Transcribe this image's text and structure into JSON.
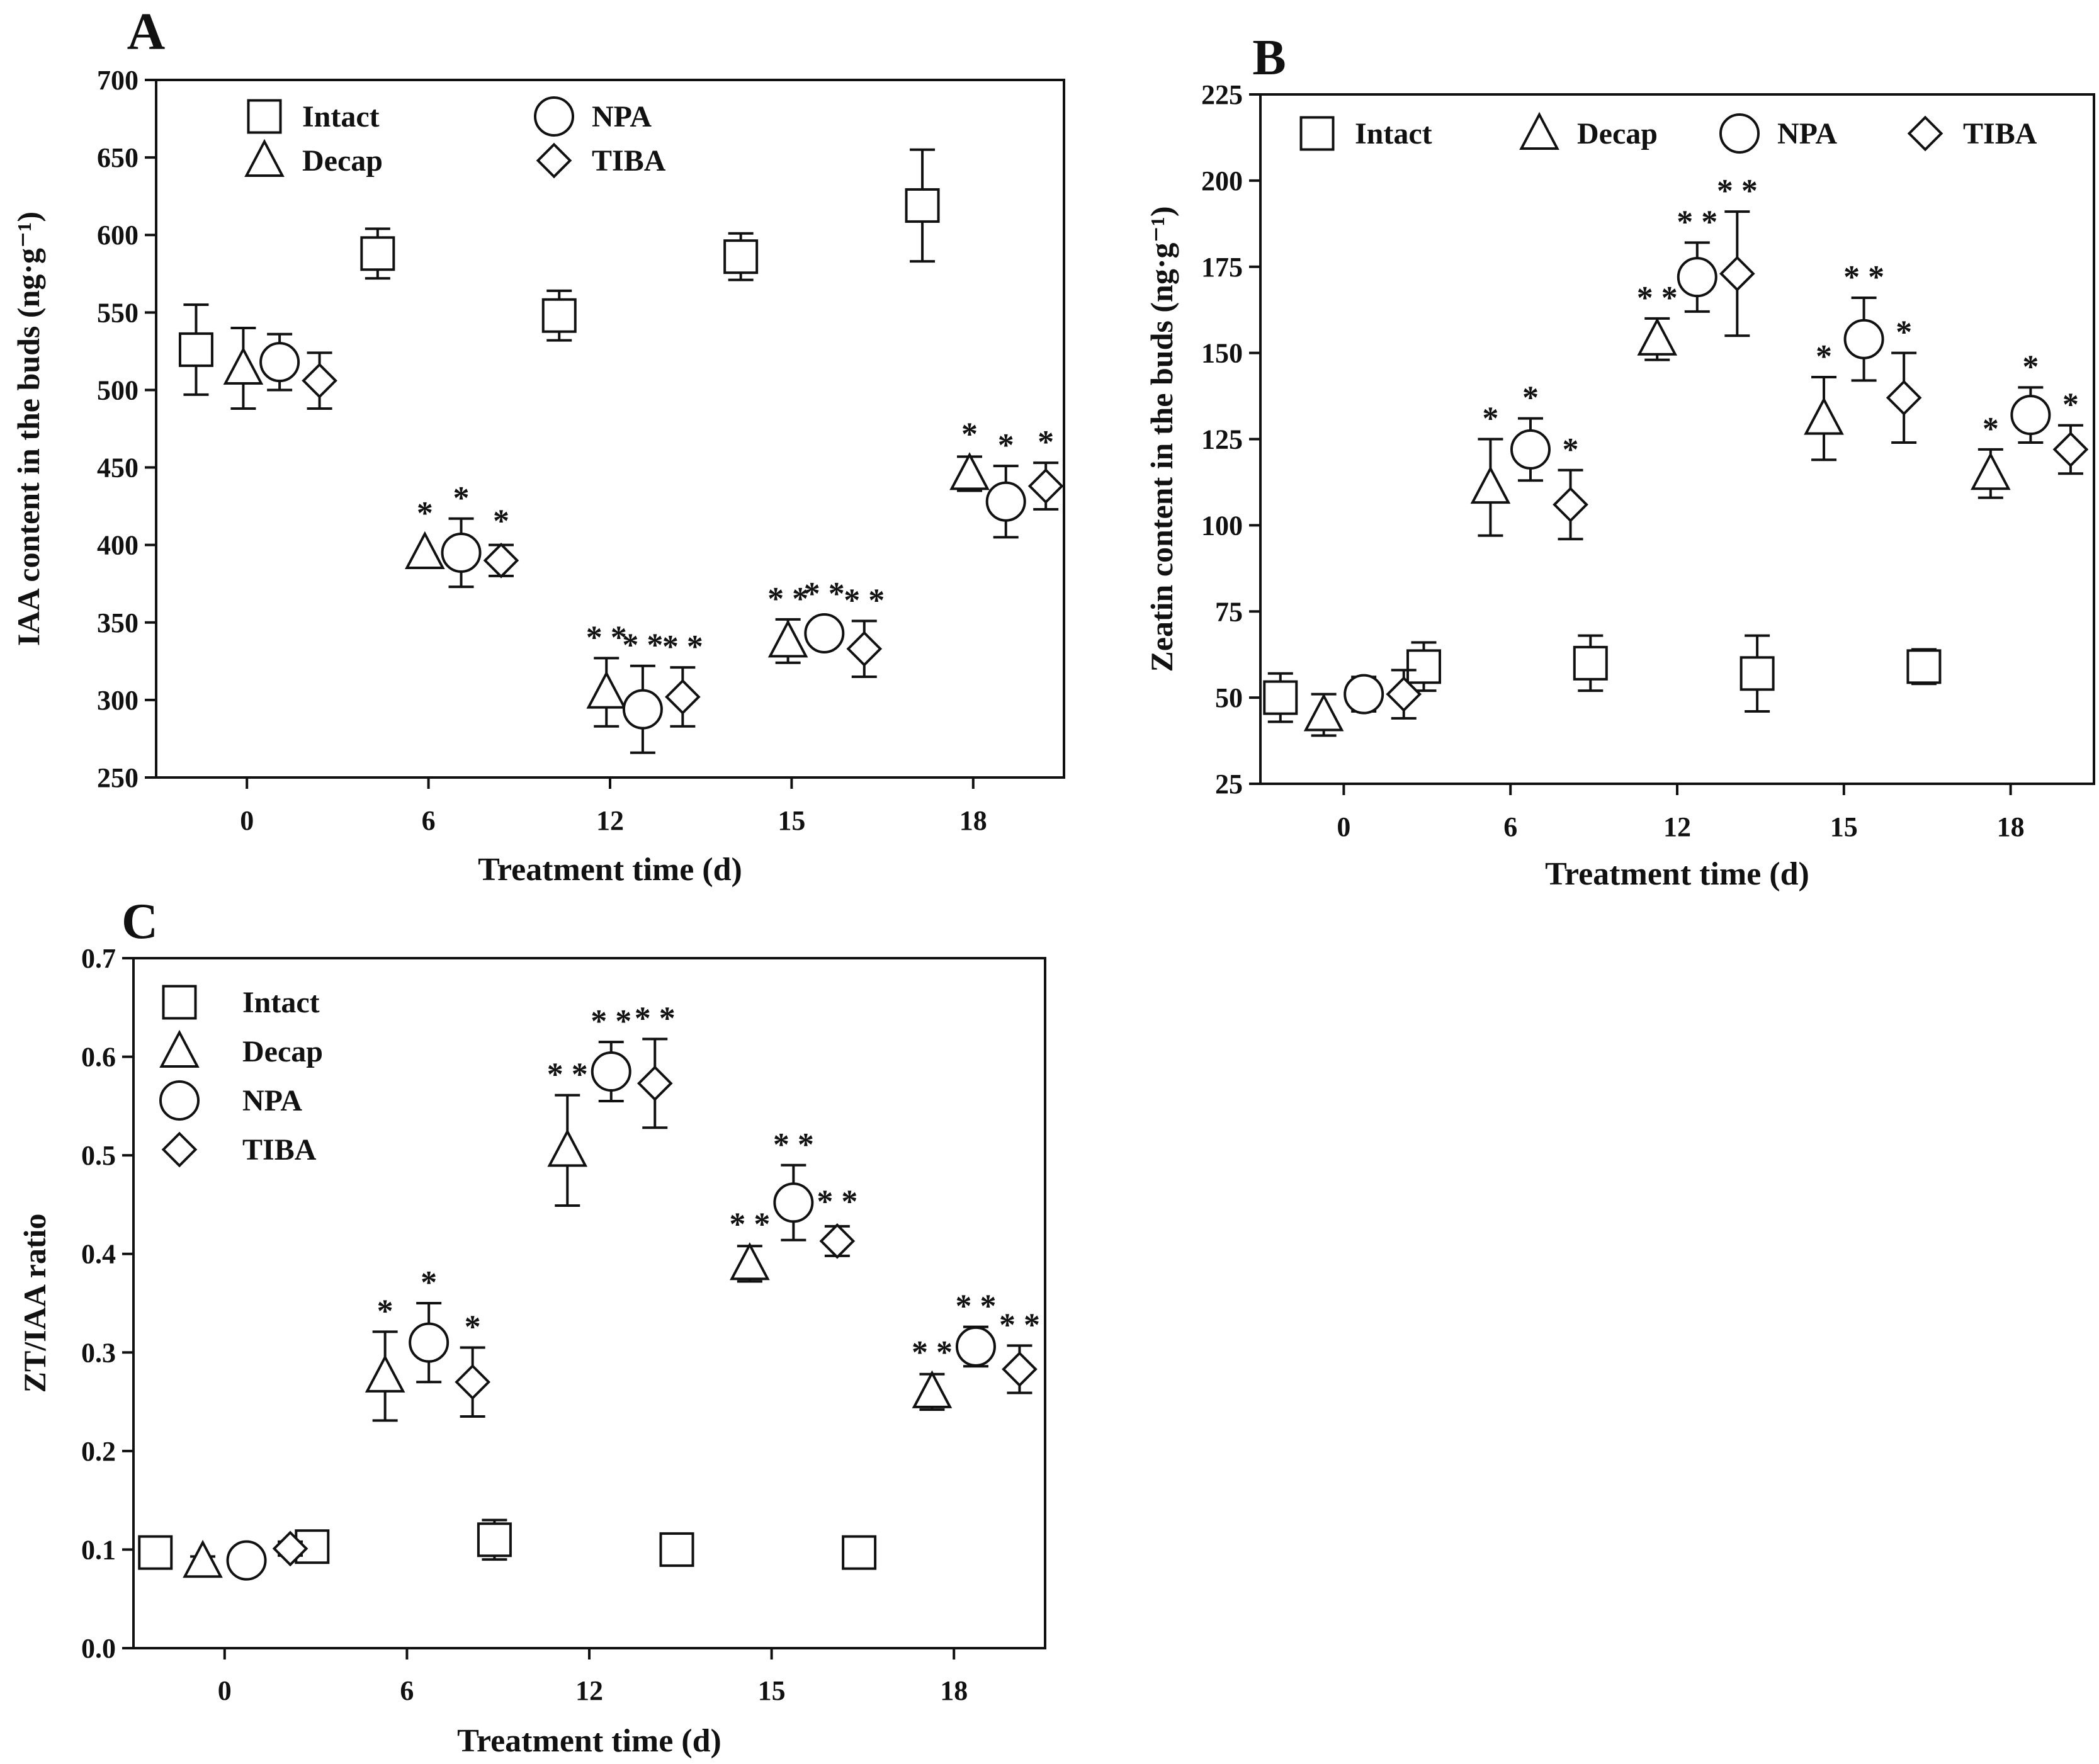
{
  "chart_data": [
    {
      "type": "scatter",
      "panel_label": "A",
      "ylabel": "IAA content in the buds (ng·g⁻¹)",
      "xlabel": "Treatment time (d)",
      "categories": [
        "0",
        "6",
        "12",
        "15",
        "18"
      ],
      "ylim": [
        250,
        700
      ],
      "yticks": [
        250,
        300,
        350,
        400,
        450,
        500,
        550,
        600,
        650,
        700
      ],
      "legend": {
        "placement": "top-left",
        "columns": 2,
        "order": [
          "Intact",
          "NPA",
          "Decap",
          "TIBA"
        ]
      },
      "series": [
        {
          "name": "Intact",
          "marker": "square",
          "offset": -0.28,
          "values": [
            526,
            588,
            548,
            586,
            619
          ],
          "errors": [
            29,
            16,
            16,
            15,
            36
          ]
        },
        {
          "name": "Decap",
          "marker": "triangle",
          "offset": -0.02,
          "values": [
            514,
            395,
            305,
            338,
            446
          ],
          "errors": [
            26,
            0,
            22,
            14,
            11
          ]
        },
        {
          "name": "NPA",
          "marker": "circle",
          "offset": 0.18,
          "values": [
            518,
            395,
            294,
            343,
            428
          ],
          "errors": [
            18,
            22,
            28,
            0,
            23
          ]
        },
        {
          "name": "TIBA",
          "marker": "diamond",
          "offset": 0.4,
          "values": [
            506,
            390,
            302,
            333,
            438
          ],
          "errors": [
            18,
            10,
            19,
            18,
            15
          ]
        }
      ],
      "significance": [
        {
          "series": "Decap",
          "labels": [
            "",
            "*",
            "* *",
            "* *",
            "*"
          ]
        },
        {
          "series": "NPA",
          "labels": [
            "",
            "*",
            "* *",
            "* *",
            "*"
          ]
        },
        {
          "series": "TIBA",
          "labels": [
            "",
            "*",
            "* *",
            "* *",
            "*"
          ]
        }
      ]
    },
    {
      "type": "scatter",
      "panel_label": "B",
      "ylabel": "Zeatin content in the buds (ng·g⁻¹)",
      "xlabel": "Treatment time (d)",
      "categories": [
        "0",
        "6",
        "12",
        "15",
        "18"
      ],
      "ylim": [
        25,
        225
      ],
      "yticks": [
        25,
        50,
        75,
        100,
        125,
        150,
        175,
        200,
        225
      ],
      "legend": {
        "placement": "top",
        "columns": 4,
        "order": [
          "Intact",
          "Decap",
          "NPA",
          "TIBA"
        ]
      },
      "series": [
        {
          "name": "Intact",
          "marker": "square",
          "offset_mode": "between",
          "values": [
            50,
            59,
            60,
            57,
            59
          ],
          "errors": [
            7,
            7,
            8,
            11,
            5
          ]
        },
        {
          "name": "Decap",
          "marker": "triangle",
          "offset": -0.12,
          "values": [
            45,
            111,
            154,
            131,
            115
          ],
          "errors": [
            6,
            14,
            6,
            12,
            7
          ]
        },
        {
          "name": "NPA",
          "marker": "circle",
          "offset": 0.12,
          "values": [
            51,
            122,
            172,
            154,
            132
          ],
          "errors": [
            5,
            9,
            10,
            12,
            8
          ]
        },
        {
          "name": "TIBA",
          "marker": "diamond",
          "offset": 0.36,
          "values": [
            51,
            106,
            173,
            137,
            122
          ],
          "errors": [
            7,
            10,
            18,
            13,
            7
          ]
        }
      ],
      "significance": [
        {
          "series": "Decap",
          "labels": [
            "",
            "*",
            "* *",
            "*",
            "*"
          ]
        },
        {
          "series": "NPA",
          "labels": [
            "",
            "*",
            "* *",
            "* *",
            "*"
          ]
        },
        {
          "series": "TIBA",
          "labels": [
            "",
            "*",
            "* *",
            "*",
            "*"
          ]
        }
      ]
    },
    {
      "type": "scatter",
      "panel_label": "C",
      "ylabel": "ZT/IAA ratio",
      "xlabel": "Treatment time (d)",
      "categories": [
        "0",
        "6",
        "12",
        "15",
        "18"
      ],
      "ylim": [
        0.0,
        0.7
      ],
      "yticks": [
        "0.0",
        "0.1",
        "0.2",
        "0.3",
        "0.4",
        "0.5",
        "0.6",
        "0.7"
      ],
      "legend": {
        "placement": "top-left",
        "columns": 1,
        "order": [
          "Intact",
          "Decap",
          "NPA",
          "TIBA"
        ]
      },
      "series": [
        {
          "name": "Intact",
          "marker": "square",
          "offset_mode": "between",
          "values": [
            0.097,
            0.103,
            0.11,
            0.1,
            0.097
          ],
          "errors": [
            0.008,
            0.008,
            0.02,
            0.015,
            0.008
          ]
        },
        {
          "name": "Decap",
          "marker": "triangle",
          "offset": -0.12,
          "values": [
            0.088,
            0.276,
            0.505,
            0.39,
            0.26
          ],
          "errors": [
            0.005,
            0.045,
            0.056,
            0.018,
            0.018
          ]
        },
        {
          "name": "NPA",
          "marker": "circle",
          "offset": 0.12,
          "values": [
            0.089,
            0.31,
            0.585,
            0.452,
            0.306
          ],
          "errors": [
            0.005,
            0.04,
            0.03,
            0.038,
            0.02
          ]
        },
        {
          "name": "TIBA",
          "marker": "diamond",
          "offset": 0.36,
          "values": [
            0.101,
            0.27,
            0.573,
            0.413,
            0.283
          ],
          "errors": [
            0.007,
            0.035,
            0.045,
            0.015,
            0.024
          ]
        }
      ],
      "significance": [
        {
          "series": "Decap",
          "labels": [
            "",
            "*",
            "* *",
            "* *",
            "* *"
          ]
        },
        {
          "series": "NPA",
          "labels": [
            "",
            "*",
            "* *",
            "* *",
            "* *"
          ]
        },
        {
          "series": "TIBA",
          "labels": [
            "",
            "*",
            "* *",
            "* *",
            "* *"
          ]
        }
      ]
    }
  ]
}
